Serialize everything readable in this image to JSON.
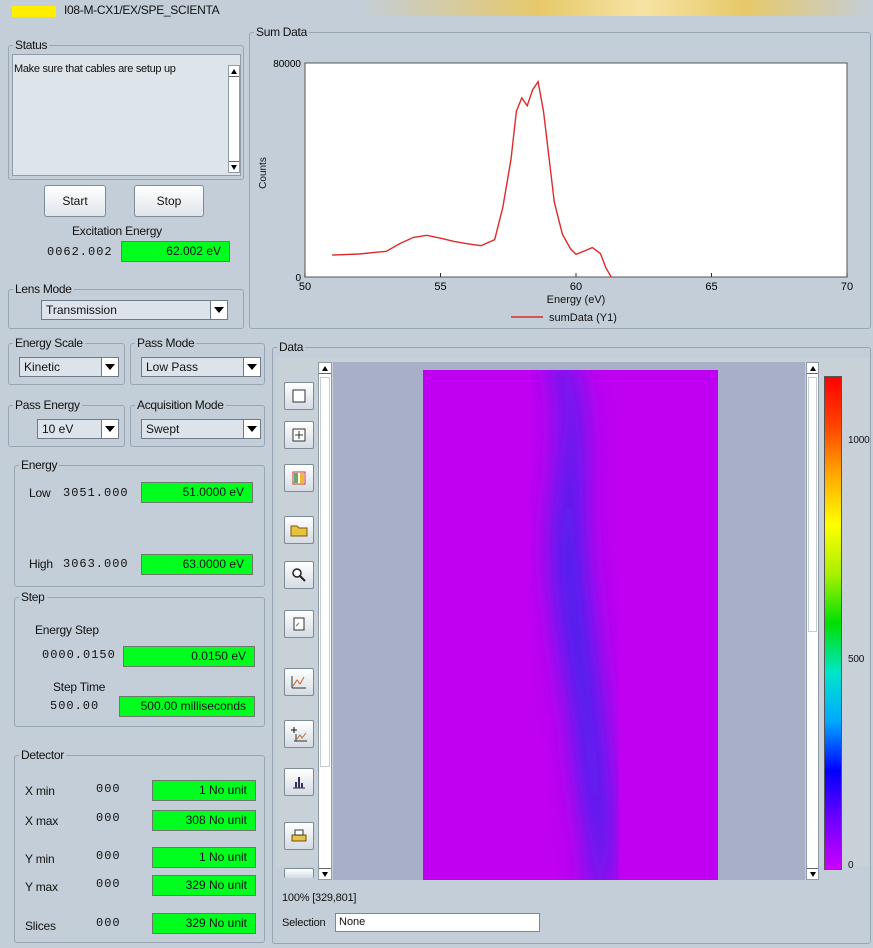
{
  "window": {
    "title": "I08-M-CX1/EX/SPE_SCIENTA",
    "indicator_color": "#ffee00"
  },
  "status": {
    "label": "Status",
    "message": "Make sure that cables are setup up"
  },
  "controls": {
    "start_label": "Start",
    "stop_label": "Stop"
  },
  "excitation": {
    "label": "Excitation Energy",
    "spinner": "0062.002",
    "readout": "62.002 eV"
  },
  "lens": {
    "label": "Lens Mode",
    "value": "Transmission"
  },
  "energy_scale": {
    "label": "Energy Scale",
    "value": "Kinetic"
  },
  "pass_mode": {
    "label": "Pass Mode",
    "value": "Low Pass"
  },
  "pass_energy": {
    "label": "Pass Energy",
    "value": "10 eV"
  },
  "acq_mode": {
    "label": "Acquisition Mode",
    "value": "Swept"
  },
  "energy": {
    "label": "Energy",
    "low_label": "Low",
    "low_spinner": "3051.000",
    "low_readout": "51.0000 eV",
    "high_label": "High",
    "high_spinner": "3063.000",
    "high_readout": "63.0000 eV"
  },
  "step": {
    "label": "Step",
    "energy_step_label": "Energy Step",
    "energy_step_spinner": "0000.0150",
    "energy_step_readout": "0.0150 eV",
    "step_time_label": "Step Time",
    "step_time_spinner": "500.00",
    "step_time_readout": "500.00 milliseconds"
  },
  "detector": {
    "label": "Detector",
    "rows": [
      {
        "label": "X min",
        "spinner": "000",
        "readout": "1 No unit"
      },
      {
        "label": "X max",
        "spinner": "000",
        "readout": "308 No unit"
      },
      {
        "label": "Y min",
        "spinner": "000",
        "readout": "1 No unit"
      },
      {
        "label": "Y max",
        "spinner": "000",
        "readout": "329 No unit"
      },
      {
        "label": "Slices",
        "spinner": "000",
        "readout": "329 No unit"
      }
    ]
  },
  "sum_panel": {
    "label": "Sum Data"
  },
  "chart_data": {
    "type": "line",
    "title": "",
    "xlabel": "Energy (eV)",
    "ylabel": "Counts",
    "xlim": [
      50,
      70
    ],
    "ylim": [
      0,
      80000
    ],
    "x_ticks": [
      "50",
      "55",
      "60",
      "65",
      "70"
    ],
    "y_ticks": [
      "0",
      "80000"
    ],
    "grid": false,
    "legend_position": "bottom-center",
    "series": [
      {
        "name": "sumData (Y1)",
        "color": "#dd2a2a",
        "x": [
          51,
          52,
          53,
          53.5,
          54,
          54.5,
          55,
          55.5,
          56,
          56.5,
          57,
          57.3,
          57.6,
          57.8,
          58,
          58.2,
          58.4,
          58.6,
          58.8,
          59,
          59.2,
          59.5,
          59.8,
          60,
          60.3,
          60.6,
          60.9,
          61.1,
          61.3
        ],
        "values": [
          8200,
          8600,
          9600,
          12500,
          14800,
          15600,
          14500,
          13300,
          12400,
          11700,
          14000,
          26000,
          44000,
          62000,
          67000,
          64000,
          70000,
          73000,
          62000,
          45000,
          28000,
          16000,
          10500,
          8500,
          9700,
          11000,
          8800,
          3500,
          0
        ]
      }
    ]
  },
  "data_panel": {
    "label": "Data",
    "status_text": "100% [329,801]",
    "selection_label": "Selection",
    "selection_value": "None"
  },
  "colorbar": {
    "ticks": [
      "1000",
      "500",
      "0"
    ]
  },
  "toolbar": {
    "icons": [
      "select-rect-icon",
      "zoom-box-icon",
      "color-box-icon",
      "open-folder-icon",
      "magnifier-icon",
      "export-icon",
      "profile-icon",
      "add-profile-icon",
      "histogram-icon",
      "print-icon"
    ]
  },
  "heatmap_colors": {
    "background": "#a8b0c8",
    "base": "#c000f0",
    "band": "#3b28ee",
    "colorbar_stops": [
      "#cc00ff",
      "#6e00ff",
      "#0000ff",
      "#00a8ff",
      "#00e6c8",
      "#00e000",
      "#aaf000",
      "#ffff00",
      "#ffaa00",
      "#ff4400",
      "#ff0000"
    ]
  }
}
